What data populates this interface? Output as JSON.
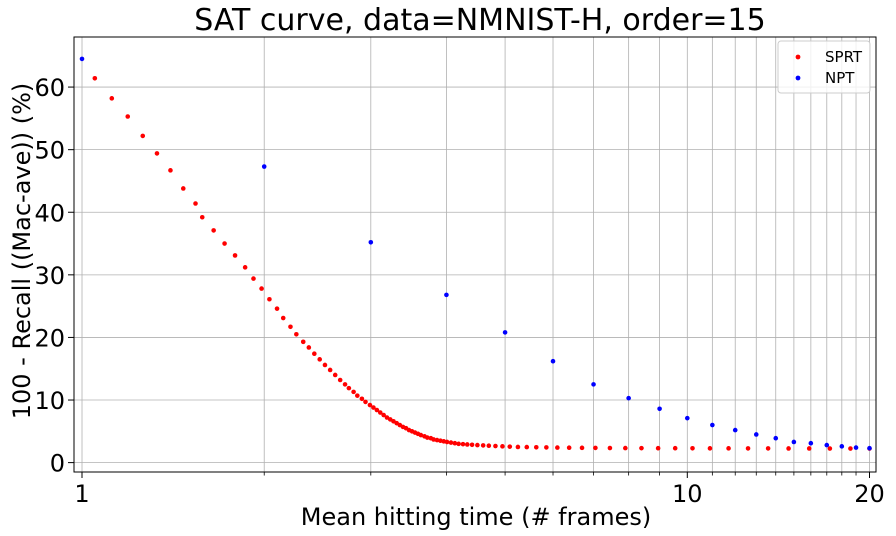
{
  "chart_data": {
    "type": "scatter",
    "title": "SAT curve, data=NMNIST-H, order=15",
    "xlabel": "Mean hitting time (# frames)",
    "ylabel": "100 - Recall ((Mac-ave)) (%)",
    "xscale": "log",
    "xlim": [
      0.97,
      20.5
    ],
    "ylim": [
      -1.5,
      68
    ],
    "grid": true,
    "legend_position": "top-right",
    "x_ticks": [
      1,
      10,
      20
    ],
    "x_tick_labels": [
      "1",
      "10",
      "20"
    ],
    "y_ticks": [
      0,
      10,
      20,
      30,
      40,
      50,
      60
    ],
    "y_tick_labels": [
      "0",
      "10",
      "20",
      "30",
      "40",
      "50",
      "60"
    ],
    "minor_x_gridlines": [
      2,
      3,
      4,
      5,
      6,
      7,
      8,
      9,
      11,
      12,
      13,
      14,
      15,
      16,
      17,
      18,
      19
    ],
    "series": [
      {
        "name": "SPRT",
        "color": "#ff0000",
        "x": [
          1.05,
          1.12,
          1.19,
          1.26,
          1.33,
          1.4,
          1.47,
          1.54,
          1.58,
          1.65,
          1.72,
          1.79,
          1.86,
          1.92,
          1.98,
          2.04,
          2.1,
          2.15,
          2.21,
          2.26,
          2.32,
          2.37,
          2.42,
          2.47,
          2.52,
          2.57,
          2.62,
          2.67,
          2.72,
          2.76,
          2.81,
          2.85,
          2.9,
          2.94,
          2.99,
          3.03,
          3.07,
          3.11,
          3.15,
          3.19,
          3.23,
          3.27,
          3.31,
          3.35,
          3.39,
          3.43,
          3.47,
          3.51,
          3.55,
          3.59,
          3.63,
          3.68,
          3.72,
          3.77,
          3.81,
          3.86,
          3.91,
          3.96,
          4.01,
          4.07,
          4.13,
          4.19,
          4.26,
          4.33,
          4.41,
          4.5,
          4.6,
          4.7,
          4.82,
          4.95,
          5.09,
          5.25,
          5.43,
          5.63,
          5.85,
          6.1,
          6.38,
          6.7,
          7.05,
          7.45,
          7.9,
          8.4,
          8.95,
          9.55,
          10.2,
          10.9,
          11.7,
          12.6,
          13.6,
          14.7,
          15.9,
          17.2,
          18.6,
          20.0
        ],
        "y": [
          61.4,
          58.2,
          55.3,
          52.2,
          49.4,
          46.7,
          43.8,
          41.4,
          39.2,
          37.1,
          35.0,
          33.1,
          31.2,
          29.4,
          27.8,
          26.1,
          24.6,
          23.1,
          21.7,
          20.5,
          19.3,
          18.4,
          17.4,
          16.5,
          15.6,
          14.8,
          14.0,
          13.2,
          12.5,
          11.9,
          11.3,
          10.7,
          10.2,
          9.7,
          9.2,
          8.8,
          8.4,
          8.0,
          7.6,
          7.2,
          6.9,
          6.6,
          6.3,
          6.0,
          5.7,
          5.5,
          5.2,
          5.0,
          4.8,
          4.6,
          4.4,
          4.2,
          4.0,
          3.9,
          3.7,
          3.6,
          3.5,
          3.4,
          3.3,
          3.2,
          3.1,
          3.0,
          2.95,
          2.9,
          2.85,
          2.8,
          2.75,
          2.7,
          2.65,
          2.6,
          2.55,
          2.5,
          2.48,
          2.45,
          2.43,
          2.4,
          2.38,
          2.36,
          2.35,
          2.33,
          2.32,
          2.31,
          2.3,
          2.3,
          2.29,
          2.28,
          2.28,
          2.27,
          2.27,
          2.26,
          2.26,
          2.25,
          2.25,
          2.25
        ]
      },
      {
        "name": "NPT",
        "color": "#0000ff",
        "x": [
          1,
          2,
          3,
          4,
          5,
          6,
          7,
          8,
          9,
          10,
          11,
          12,
          13,
          14,
          15,
          16,
          17,
          18,
          19,
          20
        ],
        "y": [
          64.5,
          47.3,
          35.2,
          26.8,
          20.8,
          16.2,
          12.5,
          10.3,
          8.6,
          7.1,
          6.0,
          5.2,
          4.5,
          3.9,
          3.3,
          3.1,
          2.8,
          2.6,
          2.4,
          2.3
        ]
      }
    ]
  }
}
